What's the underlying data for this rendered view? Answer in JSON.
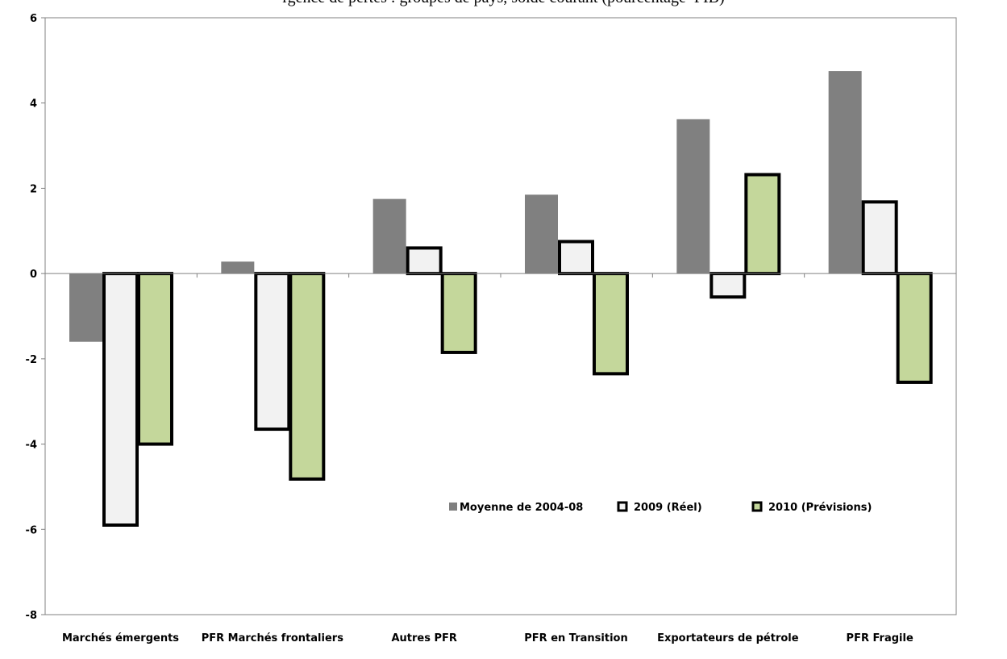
{
  "title": "rgence de pertes : groupes de pays, solde courant (pourcentage  PIB)",
  "chart_data": {
    "type": "bar",
    "categories": [
      "Marchés émergents",
      "PFR Marchés frontaliers",
      "Autres PFR",
      "PFR en Transition",
      "Exportateurs de pétrole",
      "PFR Fragile"
    ],
    "series": [
      {
        "name": "Moyenne de 2004-08",
        "values": [
          -1.6,
          0.28,
          1.75,
          1.85,
          3.62,
          4.75
        ],
        "fill": "#808080",
        "stroke": "none"
      },
      {
        "name": "2009 (Réel)",
        "values": [
          -5.9,
          -3.65,
          0.6,
          0.75,
          -0.55,
          1.68
        ],
        "fill": "#f2f2f2",
        "stroke": "#000000"
      },
      {
        "name": "2010 (Prévisions)",
        "values": [
          -4.0,
          -4.82,
          -1.85,
          -2.35,
          2.32,
          -2.55
        ],
        "fill": "#c4d79b",
        "stroke": "#000000"
      }
    ],
    "ylim": [
      -8,
      6
    ],
    "yticks": [
      "6",
      "4",
      "2",
      "0",
      "-2",
      "-4",
      "-6",
      "-8"
    ],
    "legend_position": "inside-lower-right",
    "grid": false
  }
}
